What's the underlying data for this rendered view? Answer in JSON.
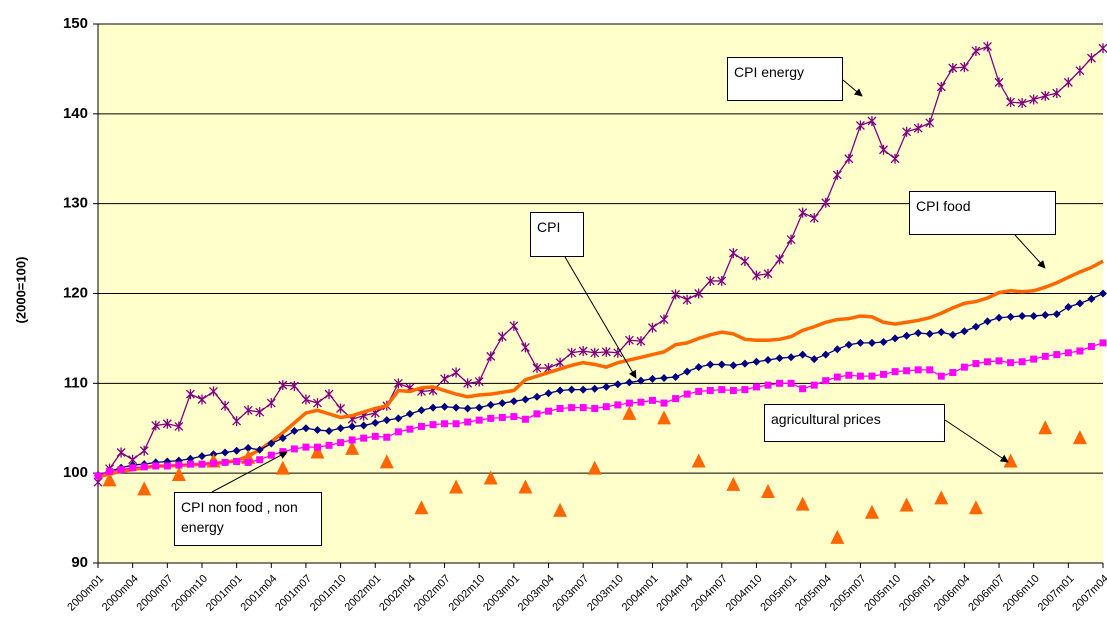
{
  "chart_data": {
    "type": "line",
    "y_label": "(2000=100)",
    "ylim": [
      90,
      150
    ],
    "yticks": [
      90,
      100,
      110,
      120,
      130,
      140,
      150
    ],
    "grid": true,
    "background": "#ffffcc",
    "categories": [
      "2000m01",
      null,
      null,
      "2000m04",
      null,
      null,
      "2000m07",
      null,
      null,
      "2000m10",
      null,
      null,
      "2001m01",
      null,
      null,
      "2001m04",
      null,
      null,
      "2001m07",
      null,
      null,
      "2001m10",
      null,
      null,
      "2002m01",
      null,
      null,
      "2002m04",
      null,
      null,
      "2002m07",
      null,
      null,
      "2002m10",
      null,
      null,
      "2003m01",
      null,
      null,
      "2003m04",
      null,
      null,
      "2003m07",
      null,
      null,
      "2003m10",
      null,
      null,
      "2004m01",
      null,
      null,
      "2004m04",
      null,
      null,
      "2004m07",
      null,
      null,
      "2004m10",
      null,
      null,
      "2005m01",
      null,
      null,
      "2005m04",
      null,
      null,
      "2005m07",
      null,
      null,
      "2005m10",
      null,
      null,
      "2006m01",
      null,
      null,
      "2006m04",
      null,
      null,
      "2006m07",
      null,
      null,
      "2006m10",
      null,
      null,
      "2007m01",
      null,
      null,
      "2007m04"
    ],
    "series": [
      {
        "name": "CPI energy",
        "color": "#800080",
        "marker": "star",
        "line": true,
        "values": [
          99,
          100.5,
          102.3,
          101.5,
          102.5,
          105.3,
          105.5,
          105.2,
          108.8,
          108.2,
          109.1,
          107.5,
          105.8,
          107,
          106.8,
          107.8,
          109.8,
          109.7,
          108.2,
          107.8,
          108.8,
          107.2,
          106,
          106.4,
          106.7,
          107.5,
          110,
          109.5,
          109.1,
          109.2,
          110.5,
          111.2,
          110,
          110.2,
          113,
          115.2,
          116.4,
          114,
          111.7,
          111.7,
          112.3,
          113.4,
          113.6,
          113.4,
          113.5,
          113.4,
          114.8,
          114.7,
          116.2,
          117.1,
          119.9,
          119.3,
          120,
          121.4,
          121.4,
          124.5,
          123.6,
          122,
          122.2,
          123.8,
          126,
          129,
          128.4,
          130.1,
          133.2,
          135,
          138.7,
          139.2,
          136,
          135,
          138,
          138.4,
          139,
          143,
          145.1,
          145.2,
          147,
          147.5,
          143.5,
          141.3,
          141.2,
          141.6,
          142,
          142.3,
          143.5,
          144.8,
          146.2,
          147.3
        ]
      },
      {
        "name": "CPI food",
        "color": "#ff6600",
        "marker": "none",
        "line": true,
        "values": [
          99.6,
          99.9,
          100.2,
          100.4,
          100.6,
          100.8,
          100.8,
          100.9,
          100.9,
          101.0,
          101.1,
          101.2,
          101.4,
          101.9,
          102.6,
          103.5,
          104.5,
          105.6,
          106.7,
          107.0,
          106.6,
          106.2,
          106.4,
          106.8,
          107.2,
          107.5,
          109.2,
          109.1,
          109.5,
          109.6,
          109.2,
          108.8,
          108.5,
          108.7,
          108.8,
          109.0,
          109.2,
          110.4,
          110.8,
          111.2,
          111.6,
          112.0,
          112.3,
          112.1,
          111.8,
          112.3,
          112.6,
          112.9,
          113.2,
          113.5,
          114.3,
          114.5,
          115.0,
          115.4,
          115.7,
          115.5,
          114.9,
          114.8,
          114.8,
          114.9,
          115.2,
          115.9,
          116.3,
          116.8,
          117.1,
          117.2,
          117.5,
          117.4,
          116.8,
          116.6,
          116.8,
          117.0,
          117.3,
          117.8,
          118.4,
          118.9,
          119.1,
          119.5,
          120.1,
          120.3,
          120.2,
          120.3,
          120.7,
          121.2,
          121.8,
          122.4,
          122.9,
          123.6
        ]
      },
      {
        "name": "CPI",
        "color": "#000080",
        "marker": "diamond",
        "line": true,
        "values": [
          99.8,
          100.2,
          100.6,
          100.9,
          101.0,
          101.2,
          101.3,
          101.4,
          101.6,
          101.9,
          102.1,
          102.3,
          102.5,
          102.8,
          102.6,
          103.3,
          103.9,
          104.7,
          105.0,
          104.8,
          104.7,
          105.0,
          105.2,
          105.3,
          105.6,
          105.9,
          106.1,
          106.6,
          107.0,
          107.3,
          107.4,
          107.3,
          107.2,
          107.3,
          107.6,
          107.8,
          108.0,
          108.2,
          108.5,
          108.9,
          109.2,
          109.3,
          109.3,
          109.4,
          109.6,
          109.9,
          110.1,
          110.3,
          110.5,
          110.6,
          110.7,
          111.3,
          111.8,
          112.1,
          112.1,
          112.0,
          112.2,
          112.4,
          112.6,
          112.8,
          112.9,
          113.2,
          112.7,
          113.2,
          113.8,
          114.3,
          114.5,
          114.5,
          114.6,
          115.0,
          115.3,
          115.6,
          115.5,
          115.7,
          115.4,
          115.8,
          116.3,
          116.9,
          117.3,
          117.4,
          117.5,
          117.5,
          117.6,
          117.7,
          118.5,
          118.9,
          119.4,
          120.0
        ]
      },
      {
        "name": "agricultural prices",
        "color": "#ff6600",
        "marker": "triangle",
        "line": false,
        "values": [
          null,
          99.2,
          null,
          null,
          98.2,
          null,
          null,
          99.8,
          null,
          null,
          101.3,
          null,
          null,
          101.7,
          null,
          null,
          100.5,
          null,
          null,
          102.3,
          null,
          null,
          102.7,
          null,
          null,
          101.2,
          null,
          null,
          96.1,
          null,
          null,
          98.4,
          null,
          null,
          99.4,
          null,
          null,
          98.4,
          null,
          null,
          95.8,
          null,
          null,
          100.5,
          null,
          null,
          106.6,
          null,
          null,
          106.1,
          null,
          null,
          101.3,
          null,
          null,
          98.7,
          null,
          null,
          97.9,
          null,
          null,
          96.5,
          null,
          null,
          92.8,
          null,
          null,
          95.6,
          null,
          null,
          96.4,
          null,
          null,
          97.2,
          null,
          null,
          96.1,
          null,
          null,
          101.3,
          null,
          null,
          105,
          null,
          null,
          103.9,
          null,
          null
        ]
      },
      {
        "name": "CPI non food , non energy",
        "color": "#ff00ff",
        "marker": "square",
        "line": true,
        "values": [
          99.7,
          100.2,
          100.4,
          100.6,
          100.7,
          100.8,
          100.8,
          100.9,
          101.0,
          101.0,
          101.1,
          101.2,
          101.3,
          101.2,
          101.5,
          102.0,
          102.4,
          102.7,
          102.9,
          102.9,
          103.1,
          103.4,
          103.7,
          103.9,
          104.1,
          104.0,
          104.6,
          104.9,
          105.2,
          105.4,
          105.5,
          105.5,
          105.7,
          105.9,
          106.1,
          106.2,
          106.3,
          106.0,
          106.6,
          106.9,
          107.2,
          107.3,
          107.3,
          107.2,
          107.4,
          107.6,
          107.8,
          107.9,
          108.1,
          107.8,
          108.3,
          108.8,
          109.1,
          109.2,
          109.3,
          109.2,
          109.3,
          109.6,
          109.8,
          110.0,
          110.0,
          109.4,
          109.8,
          110.3,
          110.7,
          110.9,
          110.8,
          110.8,
          111.0,
          111.3,
          111.4,
          111.5,
          111.5,
          110.8,
          111.2,
          111.8,
          112.2,
          112.4,
          112.5,
          112.3,
          112.4,
          112.7,
          113.0,
          113.2,
          113.4,
          113.6,
          114.1,
          114.5
        ]
      }
    ]
  }
}
